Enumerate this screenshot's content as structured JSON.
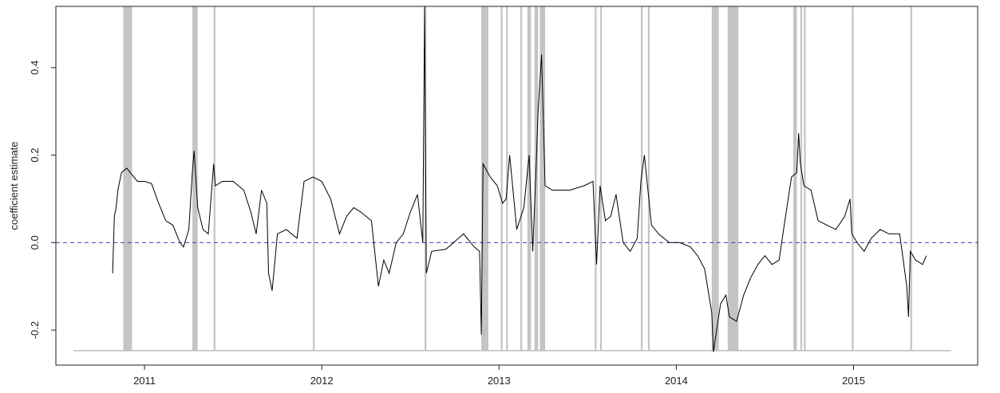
{
  "chart_data": {
    "type": "line",
    "title": "",
    "xlabel": "",
    "ylabel": "coefficient estimate",
    "xlim": [
      2010.5,
      2015.7
    ],
    "ylim": [
      -0.28,
      0.54
    ],
    "x_ticks": [
      2011,
      2012,
      2013,
      2014,
      2015
    ],
    "x_tick_labels": [
      "2011",
      "2012",
      "2013",
      "2014",
      "2015"
    ],
    "y_ticks": [
      -0.2,
      0.0,
      0.2,
      0.4
    ],
    "y_tick_labels": [
      "-0.2",
      "0.0",
      "0.2",
      "0.4"
    ],
    "grid": false,
    "colors": {
      "line": "#000000",
      "reference": "#3b3bb3",
      "shade": "#c4c4c4",
      "baseline": "#bdbdbd"
    },
    "reference_line": {
      "y": 0.0,
      "style": "dashed"
    },
    "baseline": {
      "y": -0.247,
      "x_start": 2010.6,
      "x_end": 2015.55
    },
    "shaded_periods": [
      [
        2010.88,
        2010.93
      ],
      [
        2011.27,
        2011.3
      ],
      [
        2011.39,
        2011.4
      ],
      [
        2011.95,
        2011.96
      ],
      [
        2012.58,
        2012.59
      ],
      [
        2012.9,
        2012.94
      ],
      [
        2013.01,
        2013.02
      ],
      [
        2013.04,
        2013.05
      ],
      [
        2013.12,
        2013.13
      ],
      [
        2013.16,
        2013.18
      ],
      [
        2013.2,
        2013.22
      ],
      [
        2013.23,
        2013.26
      ],
      [
        2013.54,
        2013.55
      ],
      [
        2013.57,
        2013.58
      ],
      [
        2013.8,
        2013.81
      ],
      [
        2013.84,
        2013.85
      ],
      [
        2014.2,
        2014.24
      ],
      [
        2014.29,
        2014.35
      ],
      [
        2014.66,
        2014.68
      ],
      [
        2014.7,
        2014.71
      ],
      [
        2014.72,
        2014.73
      ],
      [
        2014.99,
        2015.0
      ],
      [
        2015.32,
        2015.33
      ]
    ],
    "series": [
      {
        "values_x": [
          2010.82,
          2010.83,
          2010.84,
          2010.85,
          2010.87,
          2010.9,
          2010.93,
          2010.96,
          2011.0,
          2011.04,
          2011.08,
          2011.12,
          2011.16,
          2011.2,
          2011.22,
          2011.25,
          2011.27,
          2011.28,
          2011.3,
          2011.33,
          2011.36,
          2011.39,
          2011.4,
          2011.44,
          2011.5,
          2011.56,
          2011.6,
          2011.63,
          2011.66,
          2011.69,
          2011.7,
          2011.72,
          2011.75,
          2011.8,
          2011.86,
          2011.9,
          2011.95,
          2012.0,
          2012.05,
          2012.1,
          2012.14,
          2012.18,
          2012.22,
          2012.28,
          2012.32,
          2012.35,
          2012.38,
          2012.42,
          2012.46,
          2012.5,
          2012.54,
          2012.57,
          2012.58,
          2012.59,
          2012.62,
          2012.7,
          2012.8,
          2012.86,
          2012.89,
          2012.9,
          2012.91,
          2012.95,
          2012.99,
          2013.02,
          2013.04,
          2013.06,
          2013.1,
          2013.14,
          2013.17,
          2013.19,
          2013.21,
          2013.22,
          2013.24,
          2013.26,
          2013.3,
          2013.4,
          2013.48,
          2013.53,
          2013.55,
          2013.57,
          2013.6,
          2013.63,
          2013.66,
          2013.7,
          2013.74,
          2013.78,
          2013.8,
          2013.82,
          2013.86,
          2013.9,
          2013.96,
          2014.02,
          2014.08,
          2014.12,
          2014.16,
          2014.2,
          2014.21,
          2014.22,
          2014.25,
          2014.28,
          2014.3,
          2014.34,
          2014.38,
          2014.42,
          2014.46,
          2014.5,
          2014.54,
          2014.58,
          2014.62,
          2014.65,
          2014.68,
          2014.69,
          2014.7,
          2014.72,
          2014.76,
          2014.8,
          2014.85,
          2014.9,
          2014.95,
          2014.98,
          2014.99,
          2015.02,
          2015.06,
          2015.1,
          2015.15,
          2015.2,
          2015.26,
          2015.3,
          2015.31,
          2015.32,
          2015.35,
          2015.39,
          2015.41
        ],
        "values_y": [
          -0.07,
          0.06,
          0.08,
          0.12,
          0.16,
          0.17,
          0.155,
          0.14,
          0.14,
          0.135,
          0.09,
          0.05,
          0.04,
          0.0,
          -0.01,
          0.03,
          0.16,
          0.21,
          0.08,
          0.03,
          0.02,
          0.18,
          0.13,
          0.14,
          0.14,
          0.12,
          0.07,
          0.02,
          0.12,
          0.09,
          -0.07,
          -0.11,
          0.02,
          0.03,
          0.01,
          0.14,
          0.15,
          0.14,
          0.1,
          0.02,
          0.06,
          0.08,
          0.07,
          0.05,
          -0.1,
          -0.04,
          -0.07,
          0.0,
          0.02,
          0.07,
          0.11,
          0.0,
          0.54,
          -0.07,
          -0.02,
          -0.015,
          0.02,
          -0.01,
          -0.02,
          -0.21,
          0.18,
          0.15,
          0.13,
          0.09,
          0.1,
          0.2,
          0.03,
          0.08,
          0.2,
          -0.02,
          0.18,
          0.3,
          0.43,
          0.13,
          0.12,
          0.12,
          0.13,
          0.14,
          -0.05,
          0.13,
          0.05,
          0.06,
          0.11,
          0.0,
          -0.02,
          0.01,
          0.14,
          0.2,
          0.04,
          0.02,
          0.0,
          0.0,
          -0.01,
          -0.03,
          -0.06,
          -0.16,
          -0.25,
          -0.22,
          -0.14,
          -0.12,
          -0.17,
          -0.18,
          -0.12,
          -0.08,
          -0.05,
          -0.03,
          -0.05,
          -0.04,
          0.07,
          0.15,
          0.16,
          0.25,
          0.18,
          0.13,
          0.12,
          0.05,
          0.04,
          0.03,
          0.06,
          0.1,
          0.02,
          0.0,
          -0.02,
          0.01,
          0.03,
          0.02,
          0.02,
          -0.1,
          -0.17,
          -0.02,
          -0.04,
          -0.05,
          -0.03
        ]
      }
    ]
  }
}
